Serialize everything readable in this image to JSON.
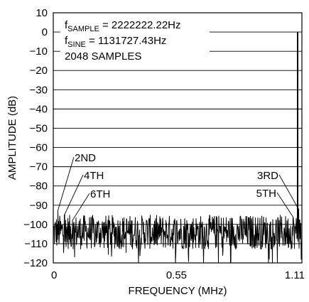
{
  "chart_data": {
    "type": "line",
    "title": "",
    "xlabel": "FREQUENCY (MHz)",
    "ylabel": "AMPLITUDE (dB)",
    "xlim": [
      0,
      1.11
    ],
    "ylim": [
      -120,
      10
    ],
    "x_ticks": [
      "0",
      "0.55",
      "1.11"
    ],
    "y_ticks": [
      10,
      0,
      -10,
      -20,
      -30,
      -40,
      -50,
      -60,
      -70,
      -80,
      -90,
      -100,
      -110,
      -120
    ],
    "y_tick_labels": [
      "10",
      "0",
      "−10",
      "−20",
      "−30",
      "−40",
      "−50",
      "−60",
      "−70",
      "−80",
      "−90",
      "−100",
      "−110",
      "−120"
    ],
    "grid": true,
    "noise_floor_db": -104,
    "noise_spread_db": 9,
    "series": [
      {
        "values_note": "",
        "fundamental": {
          "x": 1.1317,
          "y": 0
        }
      }
    ],
    "harmonics": [
      {
        "label": "2ND",
        "x": 0.02,
        "y": -93
      },
      {
        "label": "4TH",
        "x": 0.05,
        "y": -95
      },
      {
        "label": "6TH",
        "x": 0.085,
        "y": -98
      },
      {
        "label": "3RD",
        "x": 1.095,
        "y": -92
      },
      {
        "label": "5TH",
        "x": 1.07,
        "y": -96
      }
    ],
    "annotations": {
      "line1_main": "f",
      "line1_sub": "SAMPLE",
      "line1_rest": " = 2222222.22Hz",
      "line2_main": "f",
      "line2_sub": "SINE",
      "line2_rest": " = 1131727.43Hz",
      "line3": "2048 SAMPLES"
    },
    "colors": {
      "trace": "#000000",
      "grid": "#000000",
      "background": "#ffffff"
    }
  }
}
